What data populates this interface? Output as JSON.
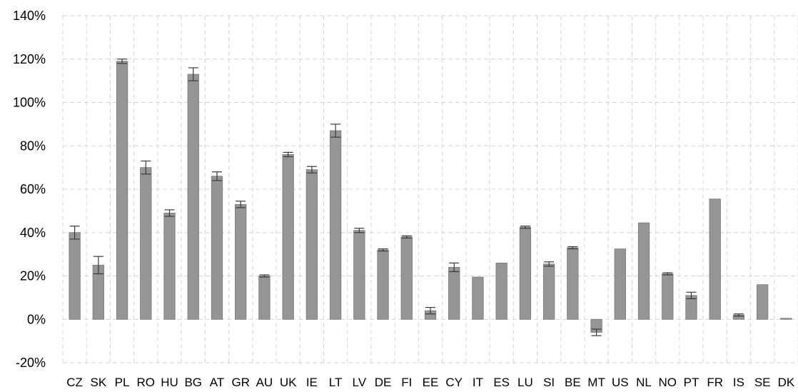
{
  "chart_data": {
    "type": "bar",
    "title": "",
    "xlabel": "",
    "ylabel": "",
    "ylim": [
      -20,
      140
    ],
    "ytick_step": 20,
    "ytick_format": "{v}%",
    "grid": true,
    "legend": "none",
    "colors": {
      "bar": "#959595",
      "bar_edge": "#7a7a7a",
      "error_bar": "#3a3a3a",
      "grid": "#d6d6d6"
    },
    "categories": [
      "CZ",
      "SK",
      "PL",
      "RO",
      "HU",
      "BG",
      "AT",
      "GR",
      "AU",
      "UK",
      "IE",
      "LT",
      "LV",
      "DE",
      "FI",
      "EE",
      "CY",
      "IT",
      "ES",
      "LU",
      "SI",
      "BE",
      "MT",
      "US",
      "NL",
      "NO",
      "PT",
      "FR",
      "IS",
      "SE",
      "DK"
    ],
    "values": [
      40,
      25,
      119,
      70,
      49,
      113,
      66,
      53,
      20,
      76,
      69,
      87,
      41,
      32,
      38,
      4,
      24,
      19.5,
      26,
      42.5,
      25.5,
      33,
      -6,
      32.5,
      44.5,
      21,
      11,
      55.5,
      2,
      16,
      0.5
    ],
    "error": [
      3,
      4,
      1,
      3,
      1.5,
      3,
      2,
      1.5,
      0.5,
      1,
      1.5,
      3,
      1,
      0.5,
      0.5,
      1.5,
      2,
      0,
      0,
      0.5,
      1,
      0.5,
      1.5,
      0,
      0,
      0.5,
      1.5,
      0,
      0.5,
      0,
      0
    ]
  }
}
